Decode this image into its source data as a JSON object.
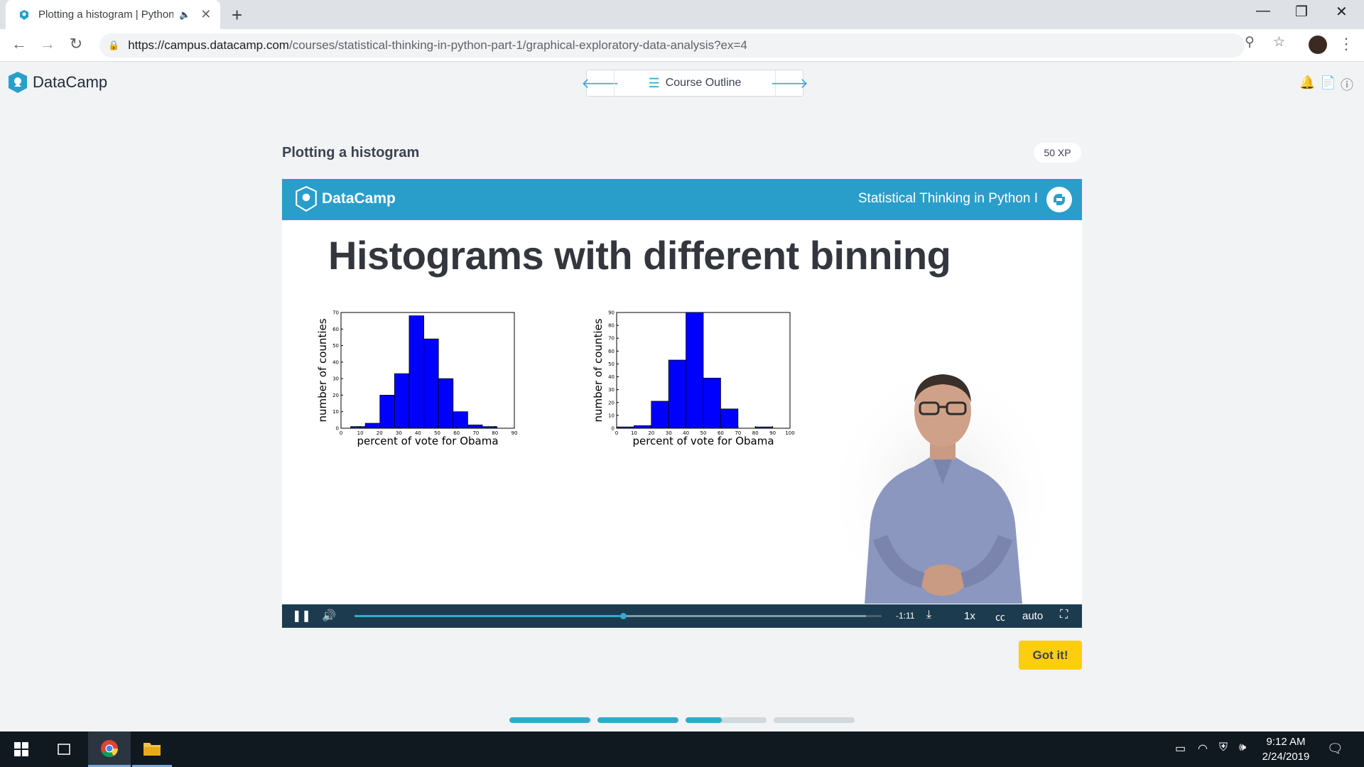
{
  "browser": {
    "tab_title": "Plotting a histogram | Python",
    "url_host": "https://campus.datacamp.com",
    "url_path": "/courses/statistical-thinking-in-python-part-1/graphical-exploratory-data-analysis?ex=4"
  },
  "header": {
    "logo_text": "DataCamp",
    "outline_label": "Course Outline"
  },
  "exercise": {
    "title": "Plotting a histogram",
    "xp": "50 XP",
    "got_it": "Got it!"
  },
  "video": {
    "logo_text": "DataCamp",
    "course_name": "Statistical Thinking in Python I",
    "slide_title": "Histograms with different binning",
    "time_remaining": "-1:11",
    "speed": "1x",
    "quality": "auto",
    "progress_fraction": 0.51,
    "buffered_fraction": 0.97
  },
  "steps": [
    {
      "fill": 1.0
    },
    {
      "fill": 1.0
    },
    {
      "fill": 0.45
    },
    {
      "fill": 0.0
    }
  ],
  "taskbar": {
    "time": "9:12 AM",
    "date": "2/24/2019"
  },
  "colors": {
    "accent": "#33aacc",
    "video_header": "#2a9ecb",
    "bar_fill": "#0000ff",
    "got_it": "#fcce0d"
  },
  "chart_data": [
    {
      "type": "bar",
      "xlabel": "percent of vote for Obama",
      "ylabel": "number of counties",
      "xlim": [
        0,
        90
      ],
      "ylim": [
        0,
        70
      ],
      "xticks": [
        "0",
        "10",
        "20",
        "30",
        "40",
        "50",
        "60",
        "70",
        "80",
        "90"
      ],
      "yticks": [
        "0",
        "10",
        "20",
        "30",
        "40",
        "50",
        "60",
        "70"
      ],
      "bin_edges": [
        5,
        12.6,
        20.2,
        27.8,
        35.4,
        43,
        50.6,
        58.2,
        65.8,
        73.4,
        81
      ],
      "values": [
        1,
        3,
        20,
        33,
        68,
        54,
        30,
        10,
        2,
        1
      ]
    },
    {
      "type": "bar",
      "xlabel": "percent of vote for Obama",
      "ylabel": "number of counties",
      "xlim": [
        0,
        100
      ],
      "ylim": [
        0,
        90
      ],
      "xticks": [
        "0",
        "10",
        "20",
        "30",
        "40",
        "50",
        "60",
        "70",
        "80",
        "90",
        "100"
      ],
      "yticks": [
        "0",
        "10",
        "20",
        "30",
        "40",
        "50",
        "60",
        "70",
        "80",
        "90"
      ],
      "bin_edges": [
        0,
        10,
        20,
        30,
        40,
        50,
        60,
        70,
        80,
        90,
        100
      ],
      "values": [
        1,
        2,
        21,
        53,
        90,
        39,
        15,
        0,
        1,
        0
      ]
    }
  ]
}
